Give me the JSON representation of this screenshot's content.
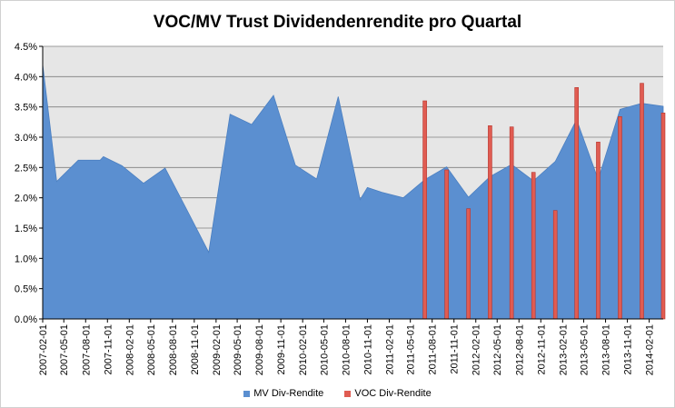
{
  "chart_data": {
    "type": "area",
    "title": "VOC/MV Trust Dividendenrendite pro Quartal",
    "xlabel": "",
    "ylabel": "",
    "ylim": [
      0,
      4.5
    ],
    "y_ticks": [
      "0.0%",
      "0.5%",
      "1.0%",
      "1.5%",
      "2.0%",
      "2.5%",
      "3.0%",
      "3.5%",
      "4.0%",
      "4.5%"
    ],
    "x_tick_labels": [
      "2007-02-01",
      "2007-05-01",
      "2007-08-01",
      "2007-11-01",
      "2008-02-01",
      "2008-05-01",
      "2008-08-01",
      "2008-11-01",
      "2009-02-01",
      "2009-05-01",
      "2009-08-01",
      "2009-11-01",
      "2010-02-01",
      "2010-05-01",
      "2010-08-01",
      "2010-11-01",
      "2011-02-01",
      "2011-05-01",
      "2011-08-01",
      "2011-11-01",
      "2012-02-01",
      "2012-05-01",
      "2012-08-01",
      "2012-11-01",
      "2013-02-01",
      "2013-05-01",
      "2013-08-01",
      "2013-11-01",
      "2014-02-01"
    ],
    "x_range": [
      "2007-02-01",
      "2014-04-01"
    ],
    "grid": true,
    "legend_position": "bottom",
    "series": [
      {
        "name": "MV Div-Rendite",
        "type": "area",
        "color": "#5b8fd0",
        "points": [
          [
            "2007-02-01",
            4.2
          ],
          [
            "2007-04-01",
            2.27
          ],
          [
            "2007-07-01",
            2.62
          ],
          [
            "2007-10-01",
            2.62
          ],
          [
            "2007-10-15",
            2.68
          ],
          [
            "2008-01-01",
            2.53
          ],
          [
            "2008-04-01",
            2.24
          ],
          [
            "2008-07-01",
            2.49
          ],
          [
            "2008-10-01",
            1.8
          ],
          [
            "2009-01-01",
            1.1
          ],
          [
            "2009-04-01",
            3.38
          ],
          [
            "2009-07-01",
            3.21
          ],
          [
            "2009-10-01",
            3.69
          ],
          [
            "2010-01-01",
            2.54
          ],
          [
            "2010-04-01",
            2.31
          ],
          [
            "2010-07-01",
            3.67
          ],
          [
            "2010-10-01",
            1.97
          ],
          [
            "2010-11-01",
            2.17
          ],
          [
            "2011-01-01",
            2.09
          ],
          [
            "2011-04-01",
            2.0
          ],
          [
            "2011-07-01",
            2.3
          ],
          [
            "2011-10-01",
            2.51
          ],
          [
            "2012-01-01",
            2.01
          ],
          [
            "2012-04-01",
            2.35
          ],
          [
            "2012-07-01",
            2.55
          ],
          [
            "2012-10-01",
            2.28
          ],
          [
            "2013-01-01",
            2.6
          ],
          [
            "2013-04-01",
            3.29
          ],
          [
            "2013-07-01",
            2.3
          ],
          [
            "2013-10-01",
            3.46
          ],
          [
            "2014-01-01",
            3.56
          ],
          [
            "2014-04-01",
            3.51
          ]
        ]
      },
      {
        "name": "VOC Div-Rendite",
        "type": "bar",
        "color": "#e05c52",
        "points": [
          [
            "2011-07-01",
            3.6
          ],
          [
            "2011-10-01",
            2.46
          ],
          [
            "2012-01-01",
            1.82
          ],
          [
            "2012-04-01",
            3.19
          ],
          [
            "2012-07-01",
            3.17
          ],
          [
            "2012-10-01",
            2.42
          ],
          [
            "2013-01-01",
            1.79
          ],
          [
            "2013-04-01",
            3.82
          ],
          [
            "2013-07-01",
            2.92
          ],
          [
            "2013-10-01",
            3.34
          ],
          [
            "2014-01-01",
            3.89
          ],
          [
            "2014-04-01",
            3.4
          ]
        ]
      }
    ]
  }
}
